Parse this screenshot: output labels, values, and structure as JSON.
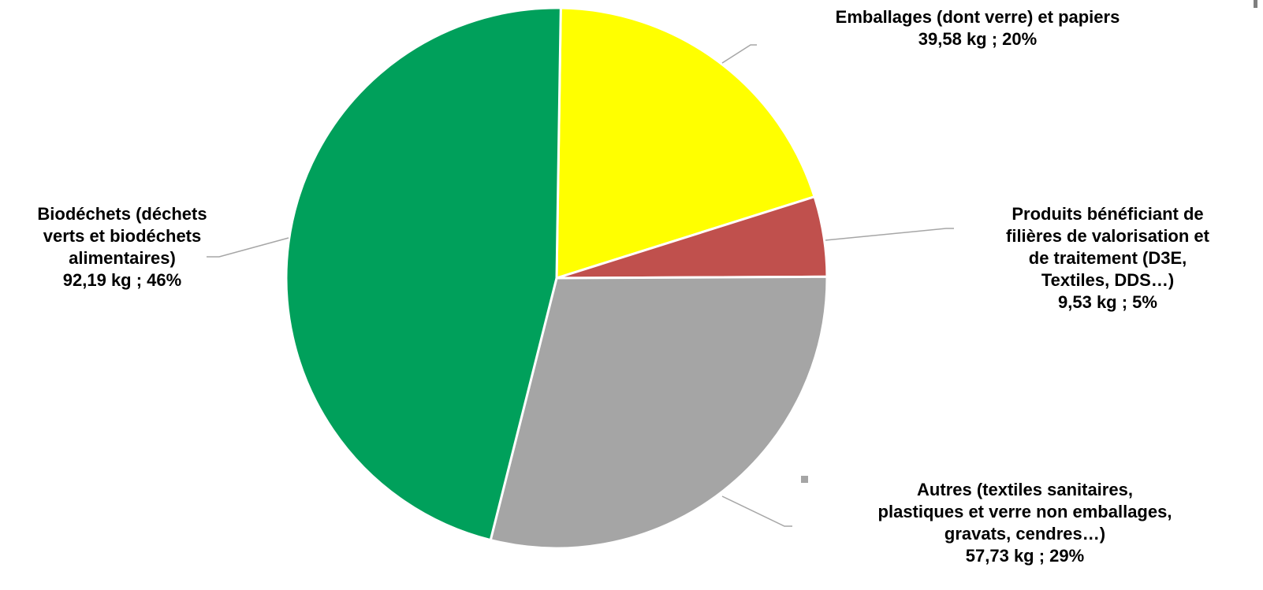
{
  "chart_data": {
    "type": "pie",
    "title": "",
    "unit": "kg",
    "slices": [
      {
        "name_lines": [
          "Emballages (dont verre) et papiers"
        ],
        "value_text": "39,58 kg ; 20%",
        "value": 39.58,
        "percent": 20,
        "color": "#FFFF00"
      },
      {
        "name_lines": [
          "Produits bénéficiant de",
          "filières de valorisation et",
          "de traitement (D3E,",
          "Textiles, DDS…)"
        ],
        "value_text": "9,53 kg ; 5%",
        "value": 9.53,
        "percent": 5,
        "color": "#C0504D"
      },
      {
        "name_lines": [
          "Autres (textiles sanitaires,",
          "plastiques et verre non emballages,",
          "gravats, cendres…)"
        ],
        "value_text": "57,73 kg ; 29%",
        "value": 57.73,
        "percent": 29,
        "color": "#A5A5A5"
      },
      {
        "name_lines": [
          "Biodéchets (déchets",
          "verts et biodéchets",
          "alimentaires)"
        ],
        "value_text": "92,19 kg ; 46%",
        "value": 92.19,
        "percent": 46,
        "color": "#00A05B"
      }
    ],
    "legend": "none",
    "leader_line_color": "#A6A6A6"
  }
}
